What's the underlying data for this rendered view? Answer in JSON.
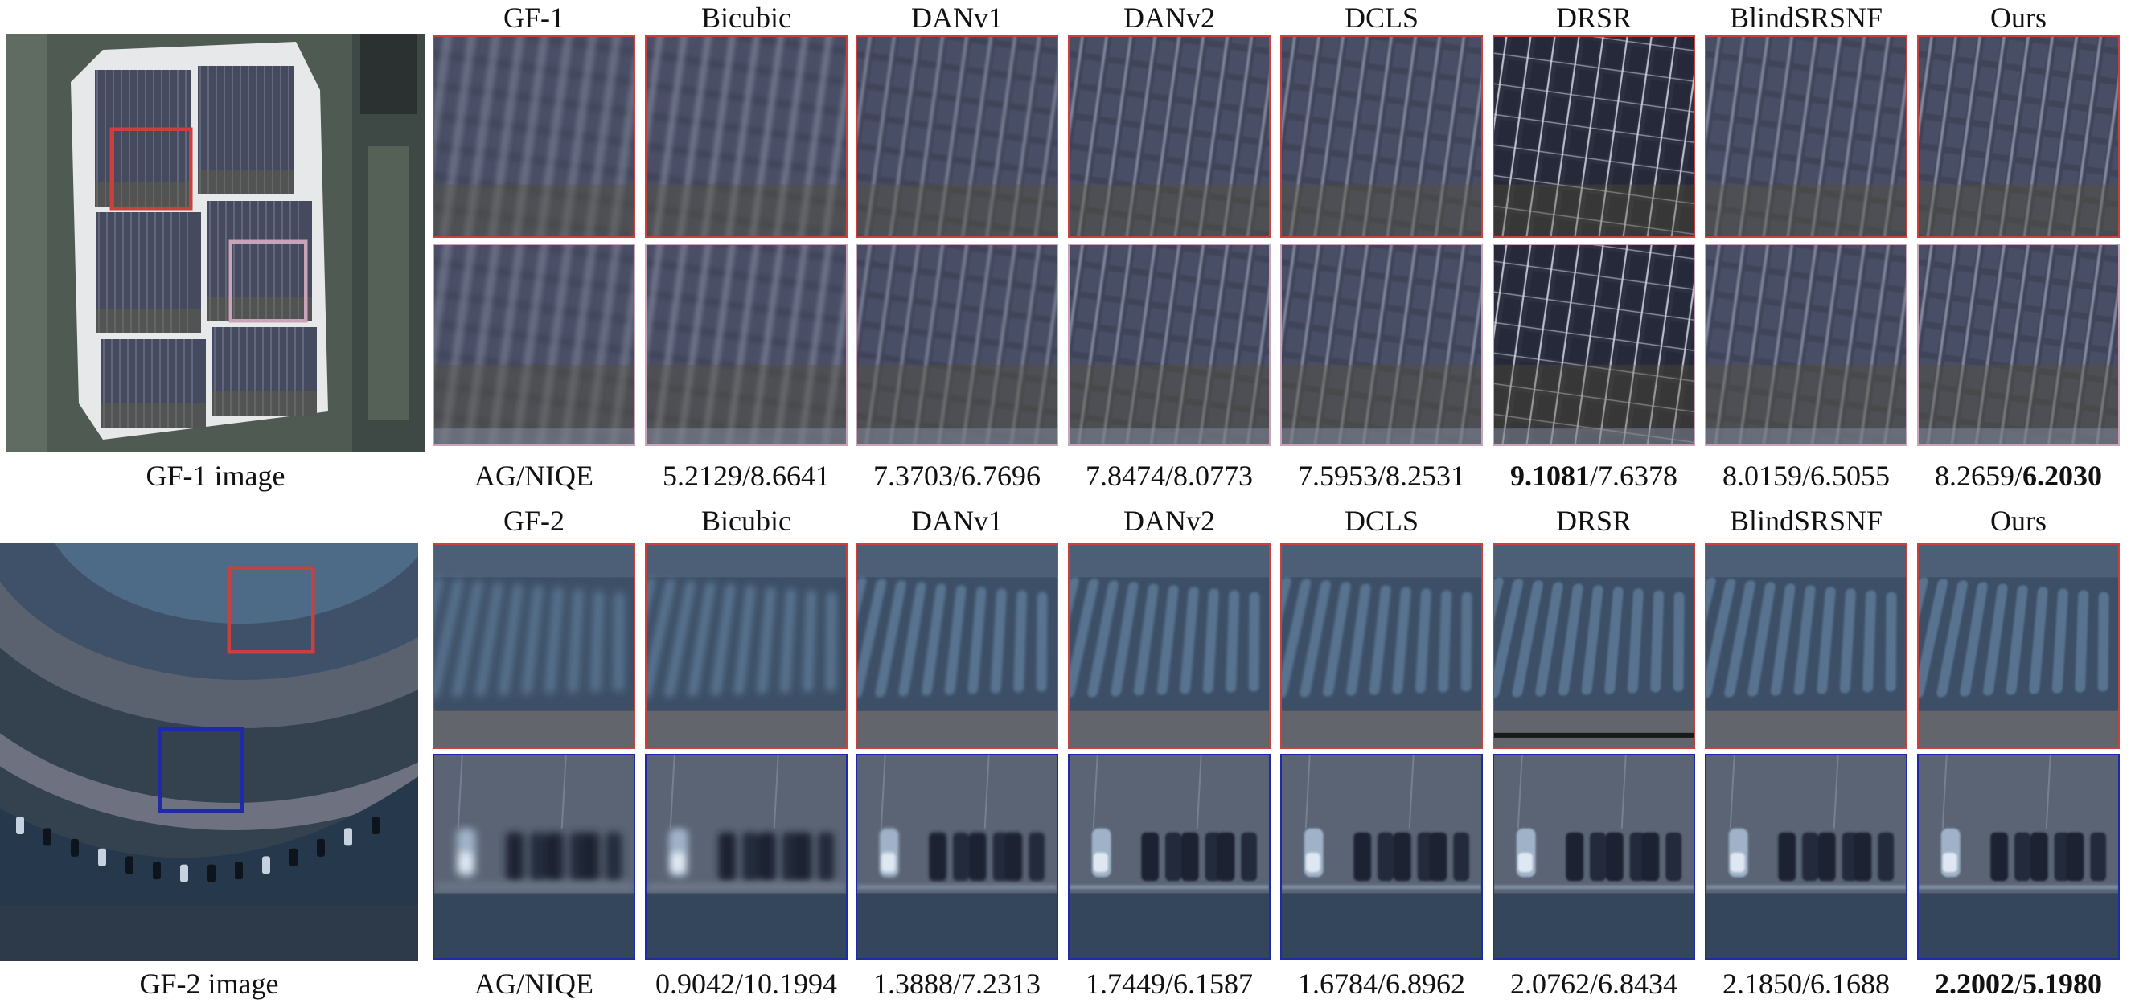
{
  "rows": [
    {
      "id": "gf1",
      "methods": [
        "GF-1",
        "Bicubic",
        "DANv1",
        "DANv2",
        "DCLS",
        "DRSR",
        "BlindSRSNF",
        "Ours"
      ],
      "overview_caption": "GF-1 image",
      "metrics_label": "AG/NIQE",
      "metrics": [
        {
          "ag": "5.2129",
          "niqe": "8.6641",
          "ag_bold": false,
          "niqe_bold": false
        },
        {
          "ag": "7.3703",
          "niqe": "6.7696",
          "ag_bold": false,
          "niqe_bold": false
        },
        {
          "ag": "7.8474",
          "niqe": "8.0773",
          "ag_bold": false,
          "niqe_bold": false
        },
        {
          "ag": "7.5953",
          "niqe": "8.2531",
          "ag_bold": false,
          "niqe_bold": false
        },
        {
          "ag": "9.1081",
          "niqe": "7.6378",
          "ag_bold": true,
          "niqe_bold": false
        },
        {
          "ag": "8.0159",
          "niqe": "6.5055",
          "ag_bold": false,
          "niqe_bold": false
        },
        {
          "ag": "8.2659",
          "niqe": "6.2030",
          "ag_bold": false,
          "niqe_bold": true
        }
      ],
      "crop_frame_colors": [
        "#c9403e",
        "#c9a3b8"
      ]
    },
    {
      "id": "gf2",
      "methods": [
        "GF-2",
        "Bicubic",
        "DANv1",
        "DANv2",
        "DCLS",
        "DRSR",
        "BlindSRSNF",
        "Ours"
      ],
      "overview_caption": "GF-2 image",
      "metrics_label": "AG/NIQE",
      "metrics": [
        {
          "ag": "0.9042",
          "niqe": "10.1994",
          "ag_bold": false,
          "niqe_bold": false
        },
        {
          "ag": "1.3888",
          "niqe": "7.2313",
          "ag_bold": false,
          "niqe_bold": false
        },
        {
          "ag": "1.7449",
          "niqe": "6.1587",
          "ag_bold": false,
          "niqe_bold": false
        },
        {
          "ag": "1.6784",
          "niqe": "6.8962",
          "ag_bold": false,
          "niqe_bold": false
        },
        {
          "ag": "2.0762",
          "niqe": "6.8434",
          "ag_bold": false,
          "niqe_bold": false
        },
        {
          "ag": "2.1850",
          "niqe": "6.1688",
          "ag_bold": false,
          "niqe_bold": false
        },
        {
          "ag": "2.2002",
          "niqe": "5.1980",
          "ag_bold": true,
          "niqe_bold": true
        }
      ],
      "crop_frame_colors": [
        "#c9403e",
        "#1f2aa8"
      ]
    }
  ]
}
